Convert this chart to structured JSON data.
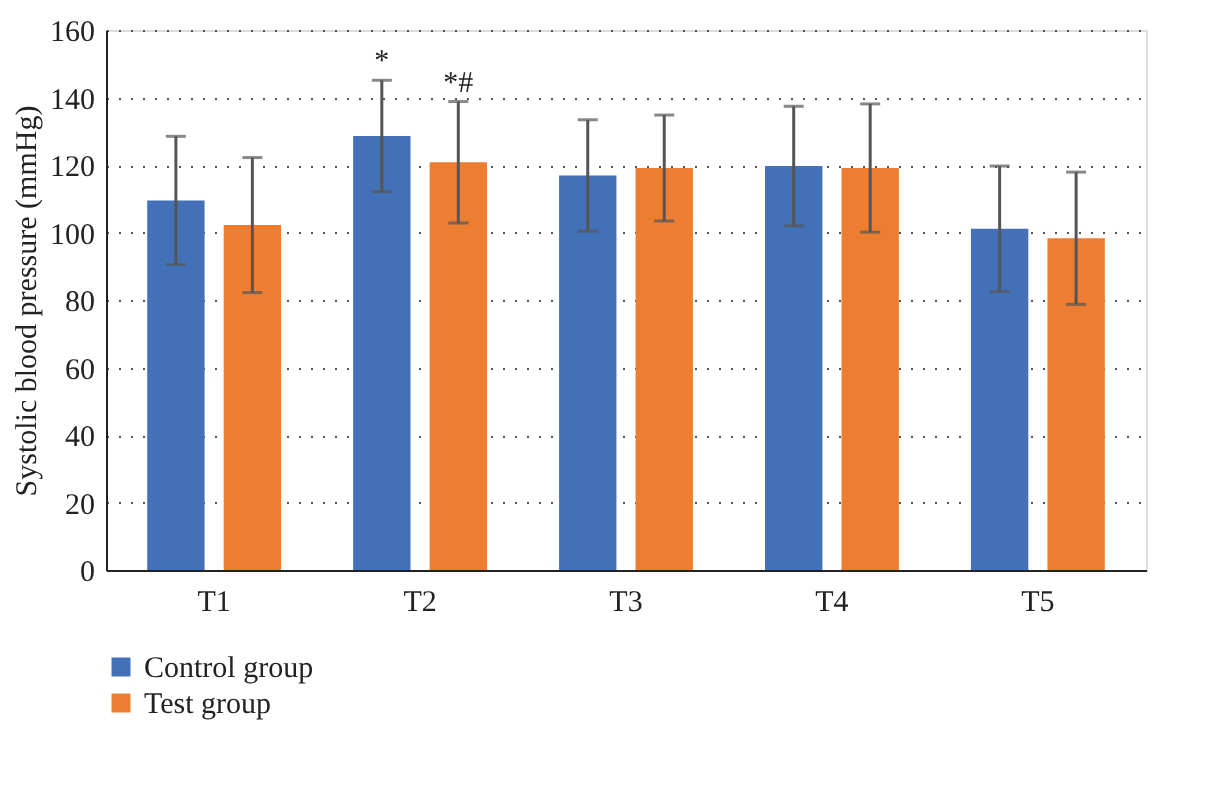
{
  "chart_data": {
    "type": "bar",
    "ylabel": "Systolic blood pressure (mmHg)",
    "categories": [
      "T1",
      "T2",
      "T3",
      "T4",
      "T5"
    ],
    "series": [
      {
        "name": "Control group",
        "color": "#4371b8",
        "values": [
          109.5,
          128.6,
          116.9,
          119.7,
          101.1
        ],
        "errors": [
          19,
          16.5,
          16.5,
          17.7,
          18.6
        ],
        "value_labels": [
          null,
          "*",
          null,
          null,
          null
        ]
      },
      {
        "name": "Test group",
        "color": "#ed7d31",
        "values": [
          102.2,
          120.8,
          119.1,
          119.1,
          98.3
        ],
        "errors": [
          20,
          18,
          15.7,
          19,
          19.6
        ],
        "value_labels": [
          null,
          "*#",
          null,
          null,
          null
        ]
      }
    ],
    "ylim": [
      0,
      160
    ],
    "yticks": [
      0,
      20,
      40,
      60,
      80,
      100,
      120,
      140,
      160
    ],
    "grid": "y",
    "legend": "bottom"
  }
}
